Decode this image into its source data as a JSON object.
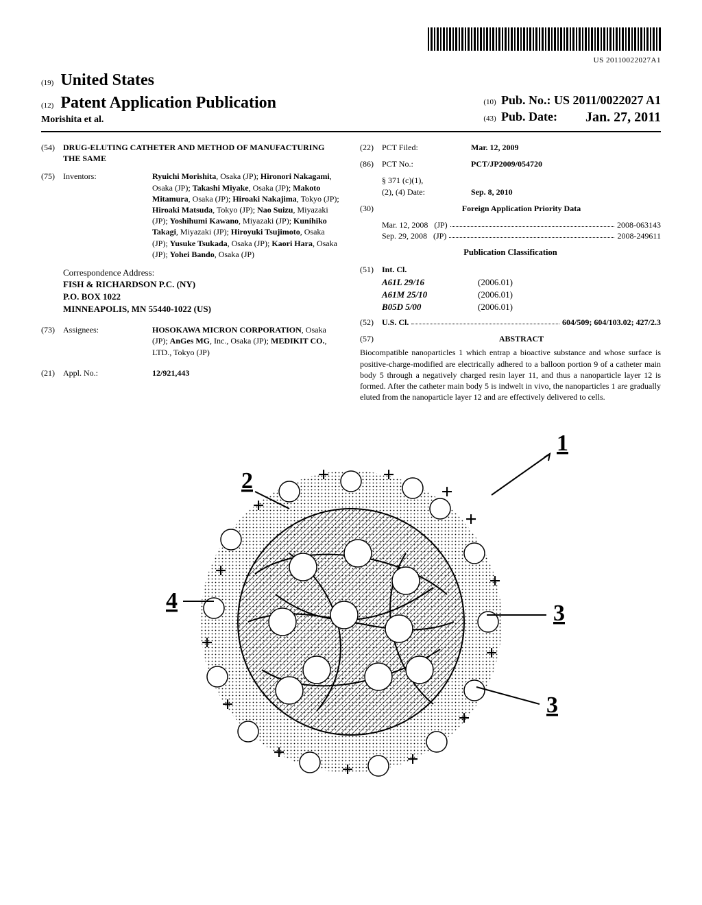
{
  "barcode_number": "US 20110022027A1",
  "header": {
    "code19": "(19)",
    "country": "United States",
    "code12": "(12)",
    "doc_type": "Patent Application Publication",
    "author_line": "Morishita et al.",
    "code10": "(10)",
    "pubno_label": "Pub. No.:",
    "pubno_value": "US 2011/0022027 A1",
    "code43": "(43)",
    "pubdate_label": "Pub. Date:",
    "pubdate_value": "Jan. 27, 2011"
  },
  "left": {
    "f54": {
      "num": "(54)",
      "title": "DRUG-ELUTING CATHETER AND METHOD OF MANUFACTURING THE SAME"
    },
    "f75": {
      "num": "(75)",
      "label": "Inventors:",
      "value": "Ryuichi Morishita, Osaka (JP); Hironori Nakagami, Osaka (JP); Takashi Miyake, Osaka (JP); Makoto Mitamura, Osaka (JP); Hiroaki Nakajima, Tokyo (JP); Hiroaki Matsuda, Tokyo (JP); Nao Suizu, Miyazaki (JP); Yoshihumi Kawano, Miyazaki (JP); Kunihiko Takagi, Miyazaki (JP); Hiroyuki Tsujimoto, Osaka (JP); Yusuke Tsukada, Osaka (JP); Kaori Hara, Osaka (JP); Yohei Bando, Osaka (JP)"
    },
    "corr_label": "Correspondence Address:",
    "corr_value": "FISH & RICHARDSON P.C. (NY)\nP.O. BOX 1022\nMINNEAPOLIS, MN 55440-1022 (US)",
    "f73": {
      "num": "(73)",
      "label": "Assignees:",
      "value": "HOSOKAWA MICRON CORPORATION, Osaka (JP); AnGes MG, Inc., Osaka (JP); MEDIKIT CO., LTD., Tokyo (JP)"
    },
    "f21": {
      "num": "(21)",
      "label": "Appl. No.:",
      "value": "12/921,443"
    }
  },
  "right": {
    "f22": {
      "num": "(22)",
      "label": "PCT Filed:",
      "value": "Mar. 12, 2009"
    },
    "f86": {
      "num": "(86)",
      "label": "PCT No.:",
      "value": "PCT/JP2009/054720"
    },
    "s371_label": "§ 371 (c)(1),\n(2), (4) Date:",
    "s371_value": "Sep. 8, 2010",
    "f30": {
      "num": "(30)",
      "heading": "Foreign Application Priority Data"
    },
    "priority": [
      {
        "date": "Mar. 12, 2008",
        "cc": "(JP)",
        "appno": "2008-063143"
      },
      {
        "date": "Sep. 29, 2008",
        "cc": "(JP)",
        "appno": "2008-249611"
      }
    ],
    "pubclass_heading": "Publication Classification",
    "f51": {
      "num": "(51)",
      "label": "Int. Cl."
    },
    "intcl": [
      {
        "code": "A61L 29/16",
        "ver": "(2006.01)"
      },
      {
        "code": "A61M 25/10",
        "ver": "(2006.01)"
      },
      {
        "code": "B05D 5/00",
        "ver": "(2006.01)"
      }
    ],
    "f52": {
      "num": "(52)",
      "label": "U.S. Cl.",
      "value": "604/509; 604/103.02; 427/2.3"
    },
    "f57": {
      "num": "(57)",
      "heading": "ABSTRACT"
    },
    "abstract": "Biocompatible nanoparticles 1 which entrap a bioactive substance and whose surface is positive-charge-modified are electrically adhered to a balloon portion 9 of a catheter main body 5 through a negatively charged resin layer 11, and thus a nanoparticle layer 12 is formed. After the catheter main body 5 is indwelt in vivo, the nanoparticles 1 are gradually eluted from the nanoparticle layer 12 and are effectively delivered to cells."
  },
  "figure": {
    "labels": {
      "l1": "1",
      "l2": "2",
      "l3": "3",
      "l3b": "3",
      "l4": "4"
    },
    "colors": {
      "stroke": "#000000",
      "fill_halo": "#d9d9d9",
      "fill_core": "#777777"
    }
  }
}
